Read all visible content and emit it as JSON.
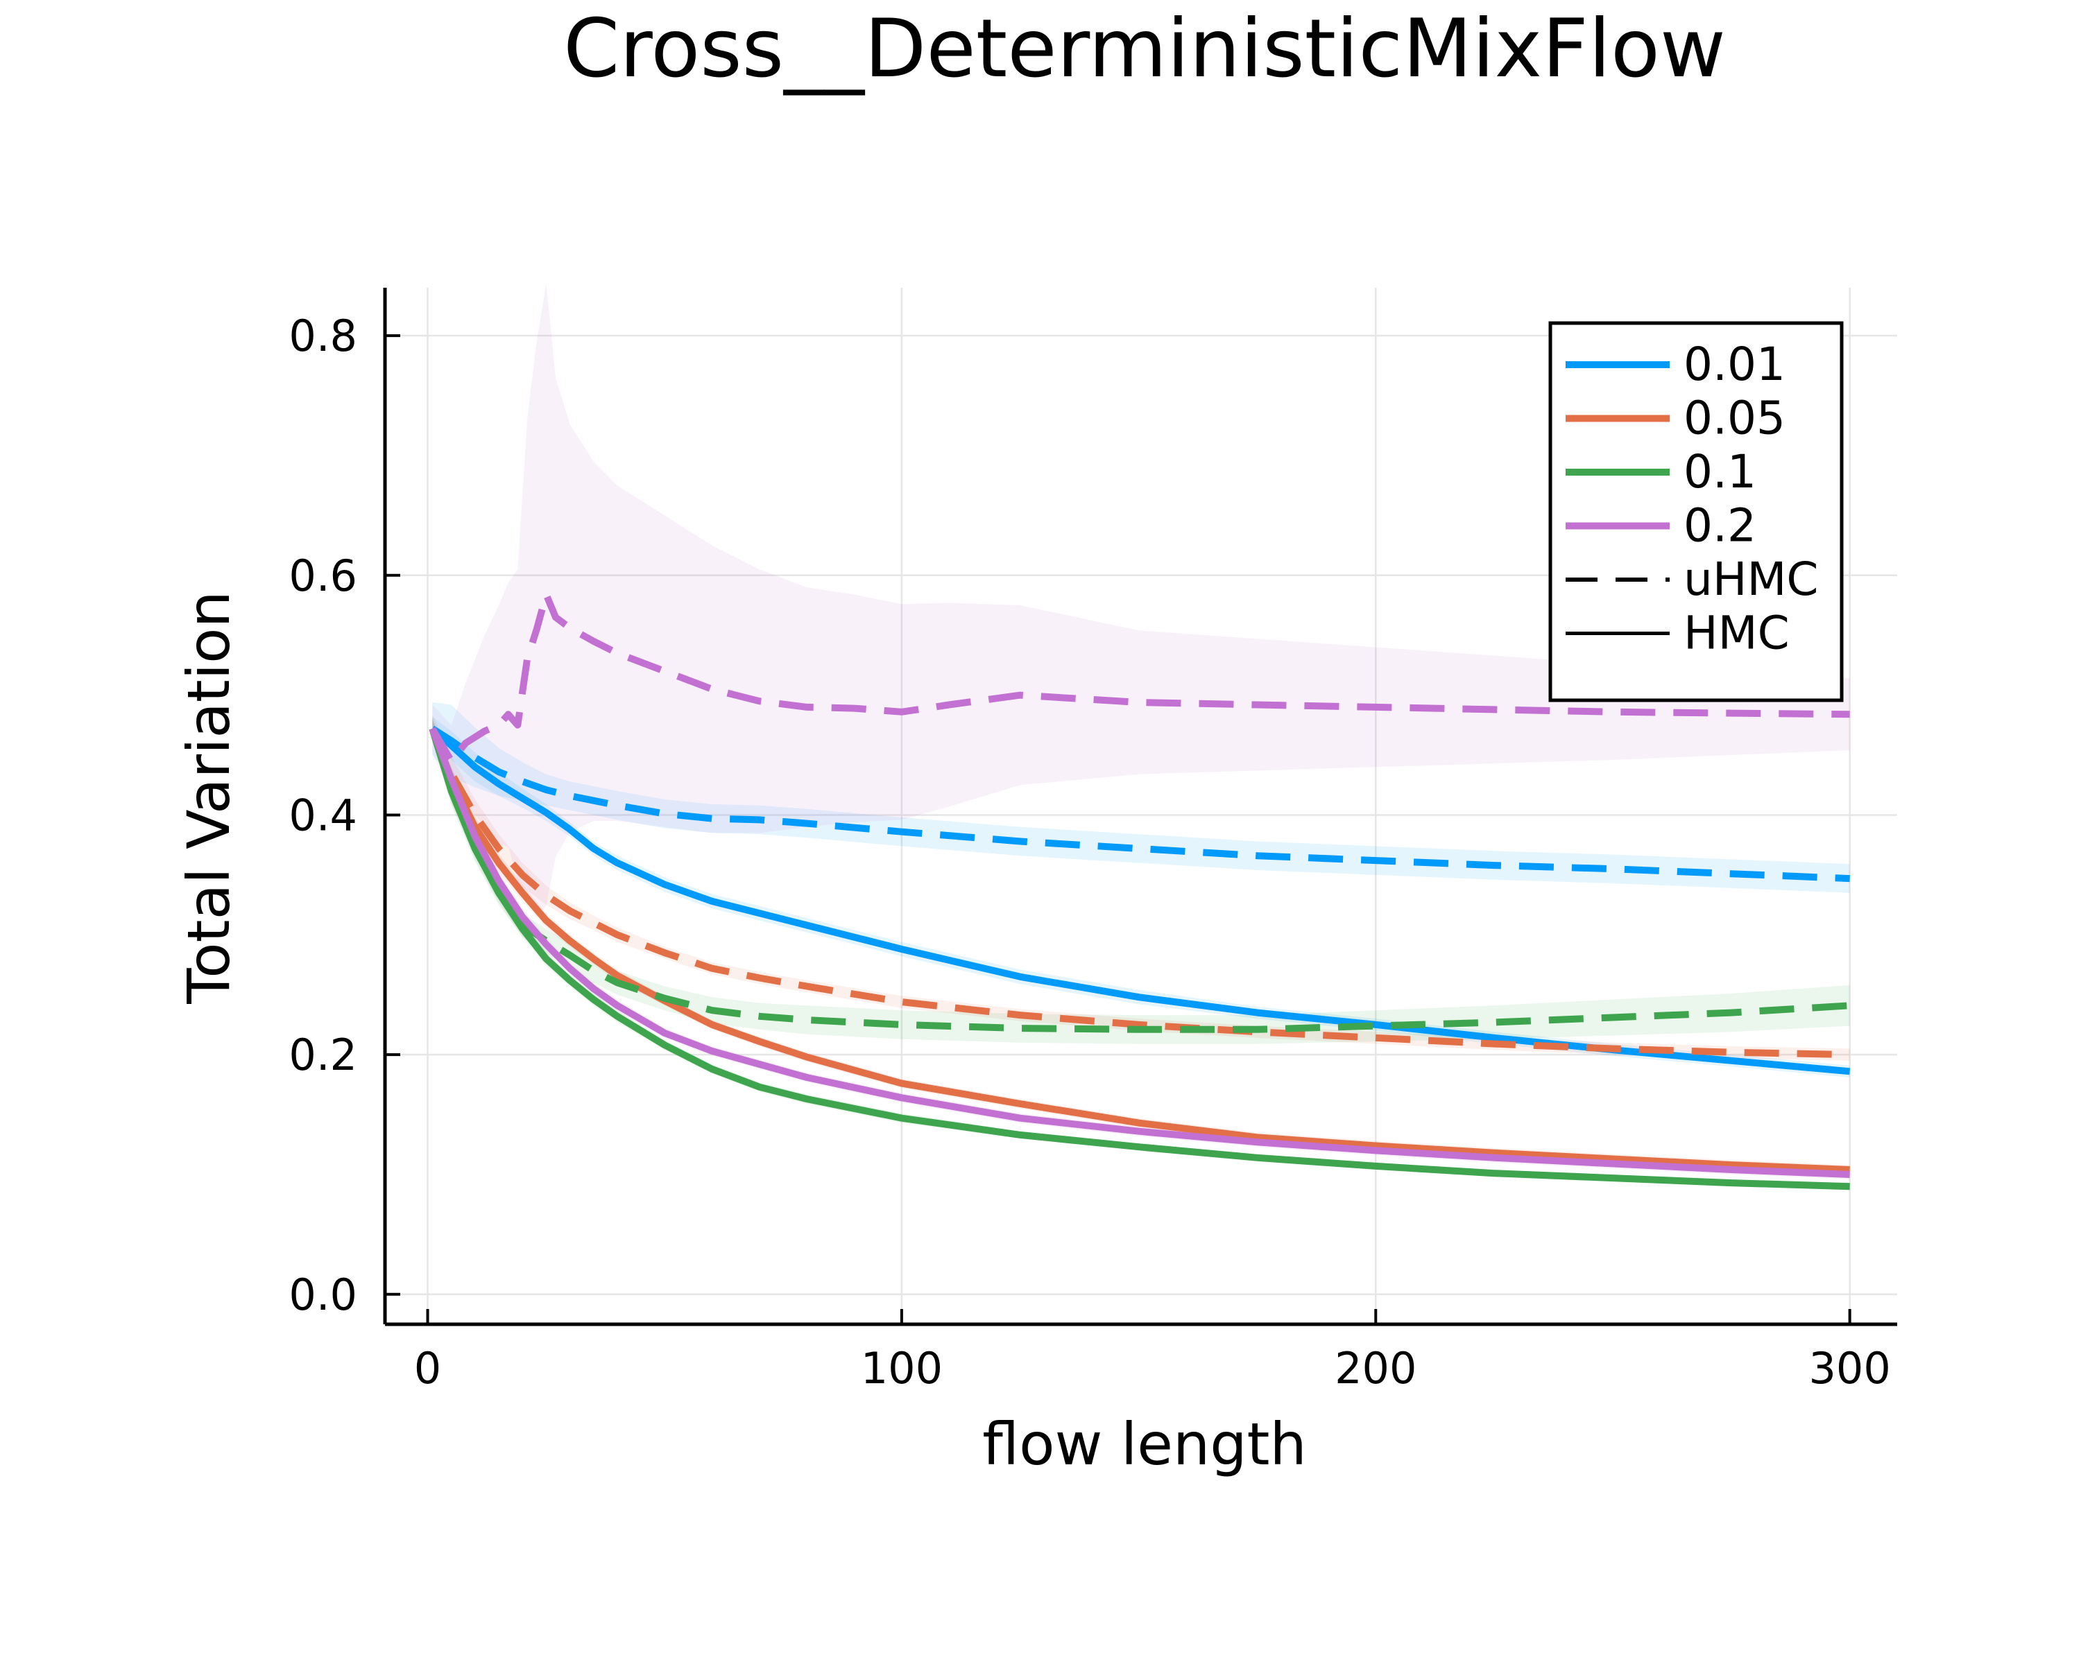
{
  "chart_data": {
    "type": "line",
    "title": "Cross__DeterministicMixFlow",
    "xlabel": "flow length",
    "ylabel": "Total Variation",
    "xlim": [
      -9,
      310
    ],
    "ylim": [
      -0.025,
      0.84
    ],
    "xticks": [
      0,
      100,
      200,
      300
    ],
    "yticks": [
      0.0,
      0.2,
      0.4,
      0.6,
      0.8
    ],
    "xtick_labels": [
      "0",
      "100",
      "200",
      "300"
    ],
    "ytick_labels": [
      "0.0",
      "0.2",
      "0.4",
      "0.6",
      "0.8"
    ],
    "grid": true,
    "legend_position": "top-right",
    "legend": [
      {
        "label": "0.01",
        "color": "#009AFA",
        "style": "solid"
      },
      {
        "label": "0.05",
        "color": "#E36F47",
        "style": "solid"
      },
      {
        "label": "0.1",
        "color": "#3EA44E",
        "style": "solid"
      },
      {
        "label": "0.2",
        "color": "#C271D2",
        "style": "solid"
      },
      {
        "label": "uHMC",
        "color": "#000000",
        "style": "dashed"
      },
      {
        "label": "HMC",
        "color": "#000000",
        "style": "solid"
      }
    ],
    "series": [
      {
        "name": "0.01",
        "method": "HMC",
        "color": "#009AFA",
        "dash": false,
        "x": [
          1,
          5,
          10,
          15,
          20,
          25,
          30,
          35,
          40,
          50,
          60,
          70,
          80,
          100,
          125,
          150,
          175,
          200,
          225,
          250,
          275,
          300
        ],
        "y": [
          0.472,
          0.458,
          0.44,
          0.426,
          0.414,
          0.402,
          0.388,
          0.372,
          0.36,
          0.342,
          0.328,
          0.318,
          0.308,
          0.288,
          0.265,
          0.248,
          0.235,
          0.225,
          0.214,
          0.204,
          0.195,
          0.186
        ],
        "band": [
          0.01,
          0.012,
          0.012,
          0.01,
          0.008,
          0.007,
          0.006,
          0.006,
          0.006,
          0.006,
          0.006,
          0.006,
          0.006,
          0.006,
          0.006,
          0.006,
          0.005,
          0.005,
          0.005,
          0.005,
          0.005,
          0.005
        ]
      },
      {
        "name": "0.01",
        "method": "uHMC",
        "color": "#009AFA",
        "dash": true,
        "x": [
          1,
          5,
          10,
          15,
          20,
          25,
          30,
          35,
          40,
          50,
          60,
          70,
          80,
          100,
          125,
          150,
          175,
          200,
          225,
          250,
          275,
          300
        ],
        "y": [
          0.472,
          0.462,
          0.448,
          0.436,
          0.428,
          0.421,
          0.416,
          0.412,
          0.408,
          0.401,
          0.397,
          0.396,
          0.393,
          0.386,
          0.378,
          0.372,
          0.366,
          0.362,
          0.358,
          0.355,
          0.351,
          0.347
        ],
        "band": [
          0.022,
          0.03,
          0.025,
          0.02,
          0.016,
          0.013,
          0.012,
          0.012,
          0.012,
          0.012,
          0.012,
          0.012,
          0.012,
          0.012,
          0.012,
          0.012,
          0.012,
          0.012,
          0.012,
          0.012,
          0.012,
          0.012
        ]
      },
      {
        "name": "0.05",
        "method": "HMC",
        "color": "#E36F47",
        "dash": false,
        "x": [
          1,
          5,
          10,
          15,
          20,
          25,
          30,
          35,
          40,
          50,
          60,
          70,
          80,
          100,
          125,
          150,
          175,
          200,
          225,
          250,
          275,
          300
        ],
        "y": [
          0.472,
          0.43,
          0.39,
          0.36,
          0.335,
          0.312,
          0.295,
          0.28,
          0.266,
          0.245,
          0.225,
          0.211,
          0.198,
          0.176,
          0.159,
          0.143,
          0.131,
          0.124,
          0.118,
          0.113,
          0.108,
          0.104
        ],
        "band": [
          0.008,
          0.01,
          0.009,
          0.008,
          0.007,
          0.006,
          0.005,
          0.005,
          0.005,
          0.004,
          0.004,
          0.004,
          0.004,
          0.004,
          0.004,
          0.004,
          0.004,
          0.004,
          0.004,
          0.004,
          0.004,
          0.004
        ]
      },
      {
        "name": "0.05",
        "method": "uHMC",
        "color": "#E36F47",
        "dash": true,
        "x": [
          1,
          5,
          10,
          15,
          20,
          25,
          30,
          35,
          40,
          50,
          60,
          70,
          80,
          100,
          125,
          150,
          175,
          200,
          225,
          250,
          275,
          300
        ],
        "y": [
          0.472,
          0.435,
          0.4,
          0.372,
          0.35,
          0.333,
          0.32,
          0.31,
          0.3,
          0.285,
          0.272,
          0.264,
          0.257,
          0.244,
          0.233,
          0.225,
          0.219,
          0.214,
          0.209,
          0.205,
          0.202,
          0.2
        ],
        "band": [
          0.012,
          0.014,
          0.013,
          0.012,
          0.01,
          0.008,
          0.007,
          0.006,
          0.006,
          0.005,
          0.005,
          0.005,
          0.005,
          0.005,
          0.005,
          0.005,
          0.005,
          0.005,
          0.005,
          0.005,
          0.005,
          0.005
        ]
      },
      {
        "name": "0.1",
        "method": "HMC",
        "color": "#3EA44E",
        "dash": false,
        "x": [
          1,
          5,
          10,
          15,
          20,
          25,
          30,
          35,
          40,
          50,
          60,
          70,
          80,
          100,
          125,
          150,
          175,
          200,
          225,
          250,
          275,
          300
        ],
        "y": [
          0.472,
          0.42,
          0.372,
          0.335,
          0.305,
          0.28,
          0.262,
          0.246,
          0.232,
          0.208,
          0.188,
          0.173,
          0.163,
          0.147,
          0.133,
          0.123,
          0.114,
          0.107,
          0.101,
          0.097,
          0.093,
          0.09
        ],
        "band": [
          0.008,
          0.01,
          0.009,
          0.008,
          0.007,
          0.006,
          0.005,
          0.005,
          0.005,
          0.004,
          0.004,
          0.004,
          0.004,
          0.004,
          0.003,
          0.003,
          0.003,
          0.003,
          0.003,
          0.003,
          0.003,
          0.003
        ]
      },
      {
        "name": "0.1",
        "method": "uHMC",
        "color": "#3EA44E",
        "dash": true,
        "x": [
          1,
          5,
          10,
          15,
          20,
          25,
          30,
          35,
          40,
          50,
          60,
          70,
          80,
          100,
          125,
          150,
          175,
          200,
          225,
          250,
          275,
          300
        ],
        "y": [
          0.472,
          0.42,
          0.372,
          0.335,
          0.308,
          0.295,
          0.283,
          0.27,
          0.26,
          0.247,
          0.237,
          0.232,
          0.229,
          0.225,
          0.222,
          0.221,
          0.221,
          0.224,
          0.227,
          0.231,
          0.235,
          0.241
        ],
        "band": [
          0.01,
          0.012,
          0.011,
          0.01,
          0.01,
          0.01,
          0.01,
          0.01,
          0.01,
          0.01,
          0.011,
          0.011,
          0.012,
          0.012,
          0.012,
          0.012,
          0.012,
          0.013,
          0.014,
          0.015,
          0.016,
          0.017
        ]
      },
      {
        "name": "0.2",
        "method": "HMC",
        "color": "#C271D2",
        "dash": false,
        "x": [
          1,
          5,
          10,
          15,
          20,
          25,
          30,
          35,
          40,
          50,
          60,
          70,
          80,
          100,
          125,
          150,
          175,
          200,
          225,
          250,
          275,
          300
        ],
        "y": [
          0.472,
          0.43,
          0.382,
          0.345,
          0.315,
          0.292,
          0.272,
          0.255,
          0.241,
          0.218,
          0.203,
          0.192,
          0.181,
          0.164,
          0.147,
          0.136,
          0.127,
          0.12,
          0.114,
          0.109,
          0.104,
          0.1
        ],
        "band": [
          0.008,
          0.01,
          0.009,
          0.008,
          0.007,
          0.006,
          0.005,
          0.005,
          0.005,
          0.004,
          0.004,
          0.004,
          0.004,
          0.004,
          0.004,
          0.004,
          0.004,
          0.004,
          0.004,
          0.004,
          0.004,
          0.004
        ]
      },
      {
        "name": "0.2",
        "method": "uHMC",
        "color": "#C271D2",
        "dash": true,
        "x": [
          1,
          5,
          8,
          12,
          15,
          17,
          19,
          21,
          23,
          25,
          27,
          30,
          35,
          40,
          50,
          60,
          70,
          80,
          90,
          100,
          110,
          125,
          150,
          175,
          200,
          225,
          250,
          275,
          300
        ],
        "y": [
          0.472,
          0.445,
          0.46,
          0.47,
          0.475,
          0.484,
          0.475,
          0.53,
          0.555,
          0.584,
          0.565,
          0.556,
          0.545,
          0.535,
          0.52,
          0.505,
          0.495,
          0.49,
          0.489,
          0.486,
          0.492,
          0.5,
          0.494,
          0.492,
          0.49,
          0.488,
          0.486,
          0.485,
          0.484
        ],
        "band": [
          0.02,
          0.03,
          0.05,
          0.08,
          0.1,
          0.11,
          0.13,
          0.2,
          0.24,
          0.26,
          0.2,
          0.17,
          0.15,
          0.14,
          0.13,
          0.12,
          0.11,
          0.1,
          0.095,
          0.09,
          0.085,
          0.075,
          0.06,
          0.055,
          0.05,
          0.045,
          0.04,
          0.035,
          0.03
        ]
      }
    ]
  }
}
